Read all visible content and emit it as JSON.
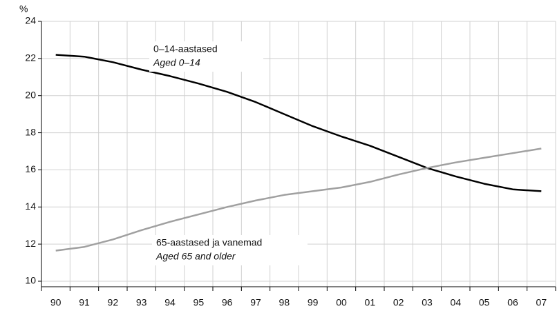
{
  "chart_data": {
    "type": "line",
    "y_unit": "%",
    "categories": [
      "90",
      "91",
      "92",
      "93",
      "94",
      "95",
      "96",
      "97",
      "98",
      "99",
      "00",
      "01",
      "02",
      "03",
      "04",
      "05",
      "06",
      "07"
    ],
    "series": [
      {
        "name": "0–14-aastased",
        "name_en": "Aged 0–14",
        "color": "#000000",
        "values": [
          22.2,
          22.1,
          21.8,
          21.4,
          21.05,
          20.65,
          20.2,
          19.65,
          19.0,
          18.35,
          17.8,
          17.3,
          16.7,
          16.1,
          15.65,
          15.25,
          14.95,
          14.85
        ]
      },
      {
        "name": "65-aastased ja vanemad",
        "name_en": "Aged 65 and older",
        "color": "#a0a0a0",
        "values": [
          11.65,
          11.85,
          12.25,
          12.75,
          13.2,
          13.6,
          14.0,
          14.35,
          14.65,
          14.85,
          15.05,
          15.35,
          15.75,
          16.1,
          16.4,
          16.65,
          16.9,
          17.15
        ]
      }
    ],
    "ylim": [
      10,
      24
    ],
    "yticks": [
      10,
      12,
      14,
      16,
      18,
      20,
      22,
      24
    ],
    "grid": true
  }
}
